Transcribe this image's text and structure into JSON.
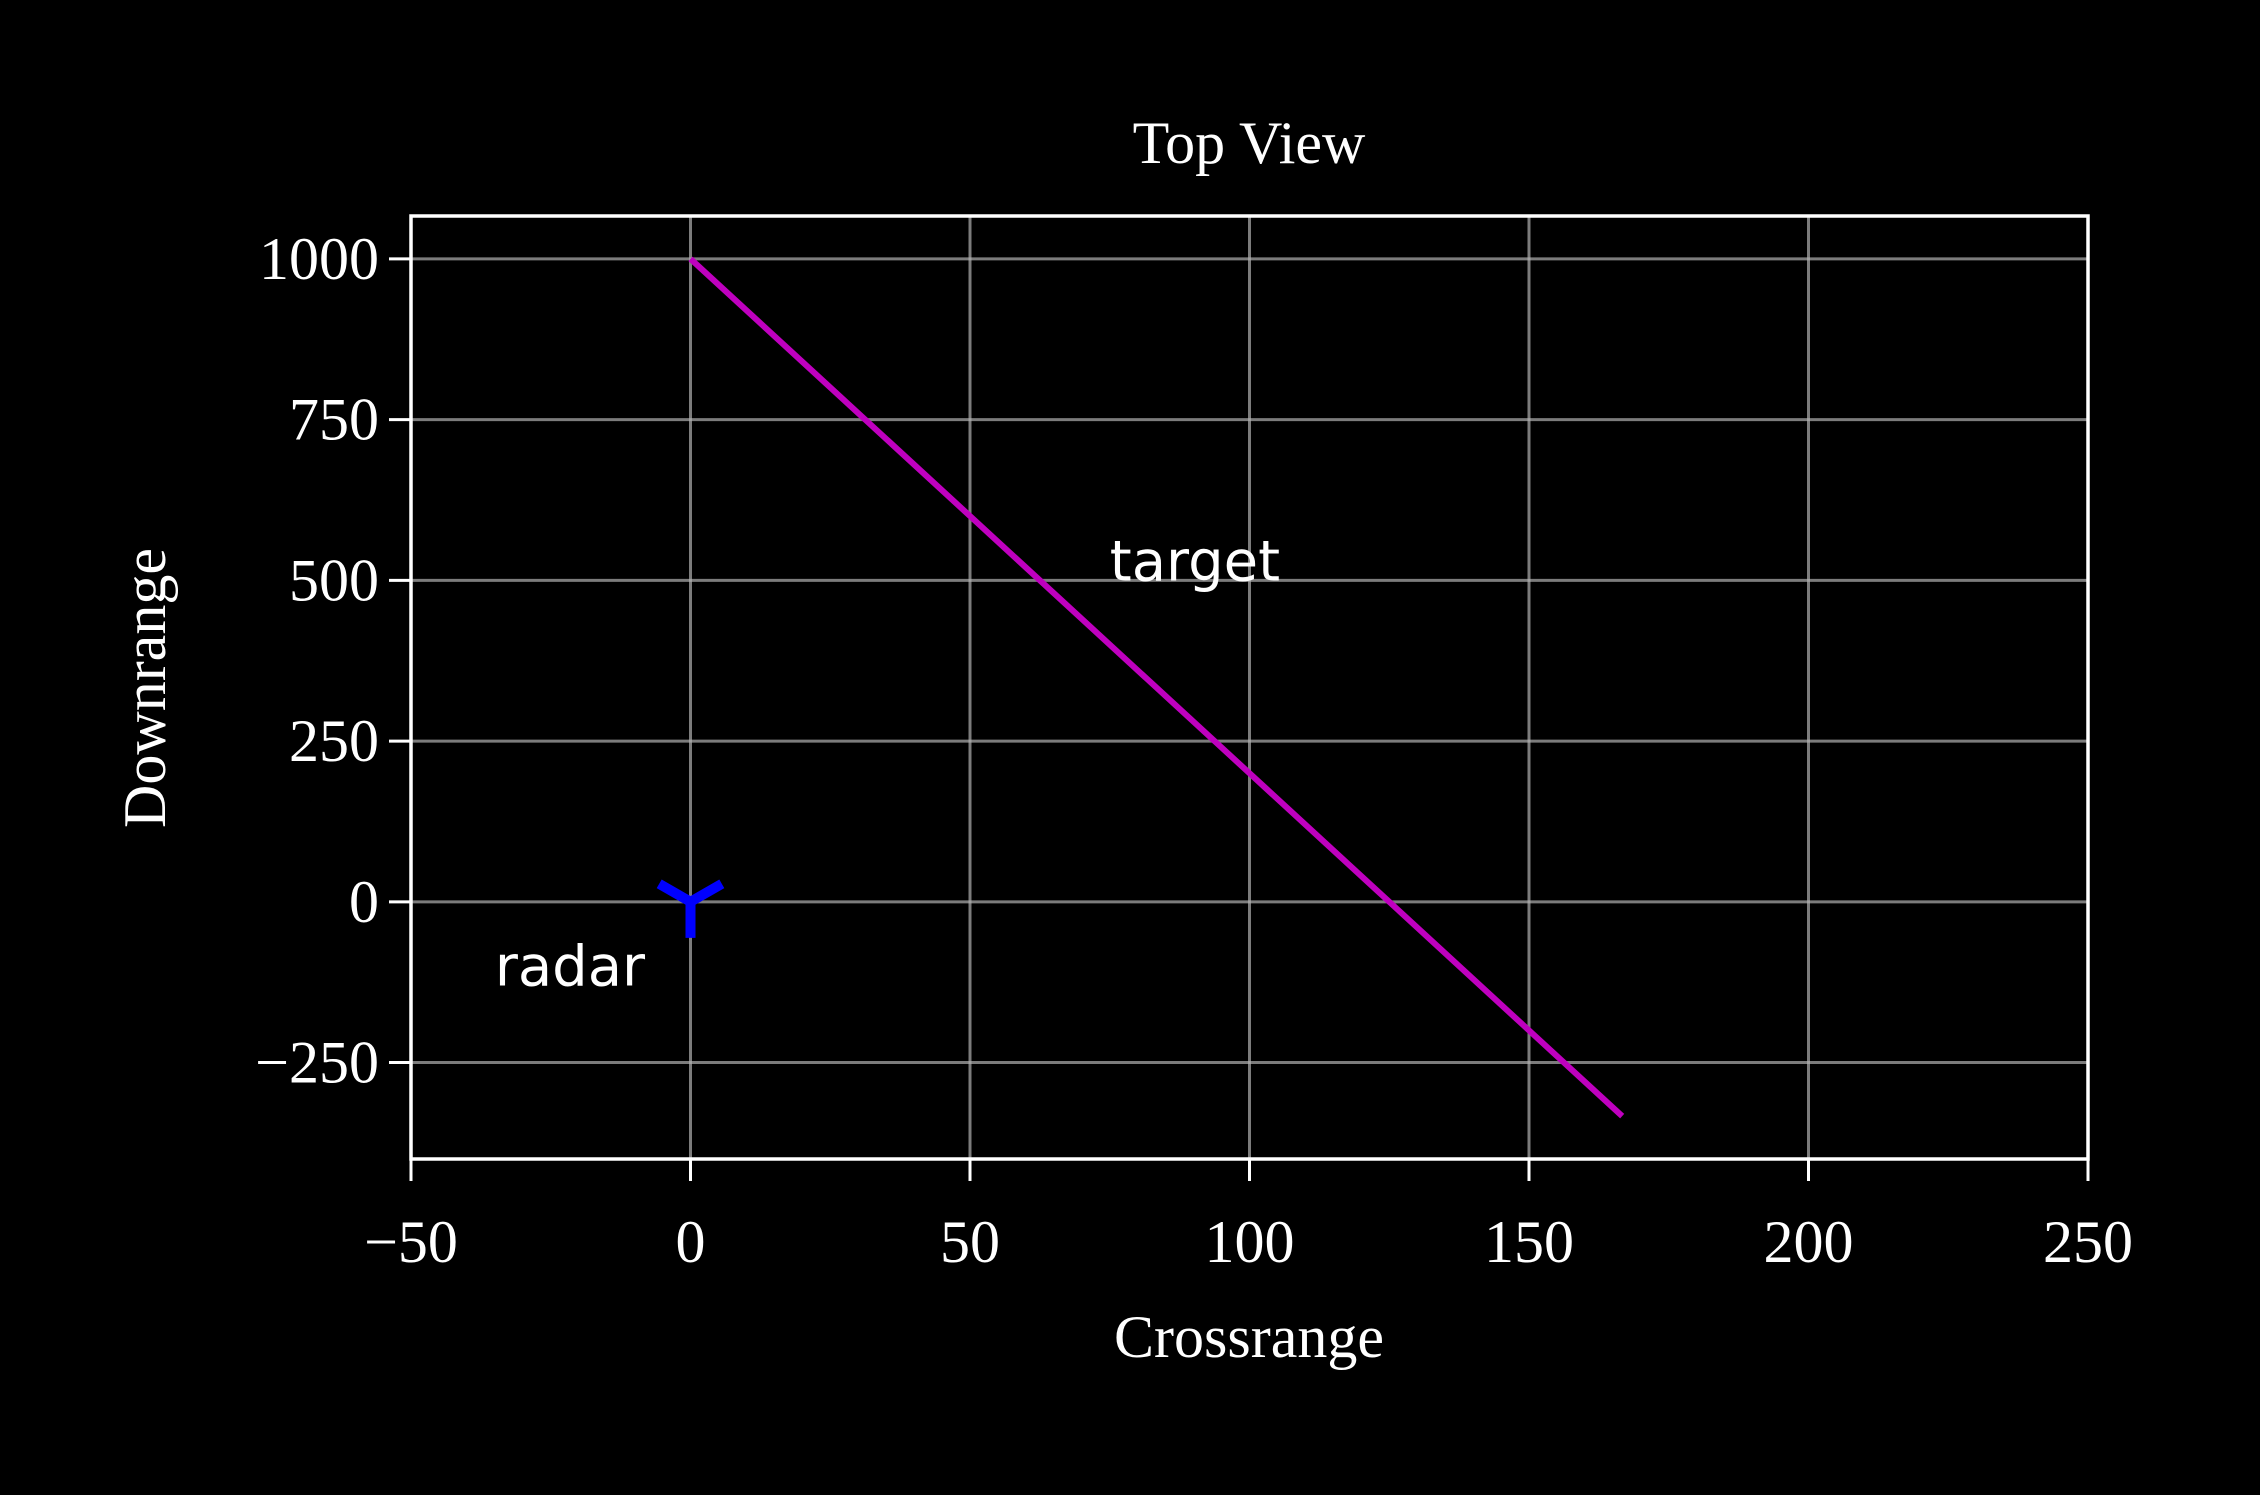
{
  "chart_data": {
    "type": "line",
    "title": "Top View",
    "x_label": "Crossrange",
    "y_label": "Downrange",
    "series": [
      {
        "color": "#bf00bf",
        "x": [
          0,
          166.67
        ],
        "values": [
          1000,
          -333.33
        ]
      },
      {
        "color": "#0000ff",
        "marker": "tri_down",
        "x": [
          0
        ],
        "values": [
          0
        ]
      }
    ],
    "annotations": [
      {
        "text": "target",
        "x": 75,
        "y": 500,
        "color": "#ff00ff"
      },
      {
        "text": "radar",
        "x": -35,
        "y": -130,
        "color": "#0000ff"
      }
    ],
    "xlim": [
      -50,
      250
    ],
    "xticks": [
      {
        "value": -50,
        "label": "−50"
      },
      0,
      50,
      100,
      150,
      200,
      250
    ],
    "ylim": [
      -400,
      1066.67
    ],
    "yticks": [
      {
        "value": -250,
        "label": "−250"
      },
      0,
      250,
      500,
      750,
      1000
    ],
    "grid": true
  }
}
